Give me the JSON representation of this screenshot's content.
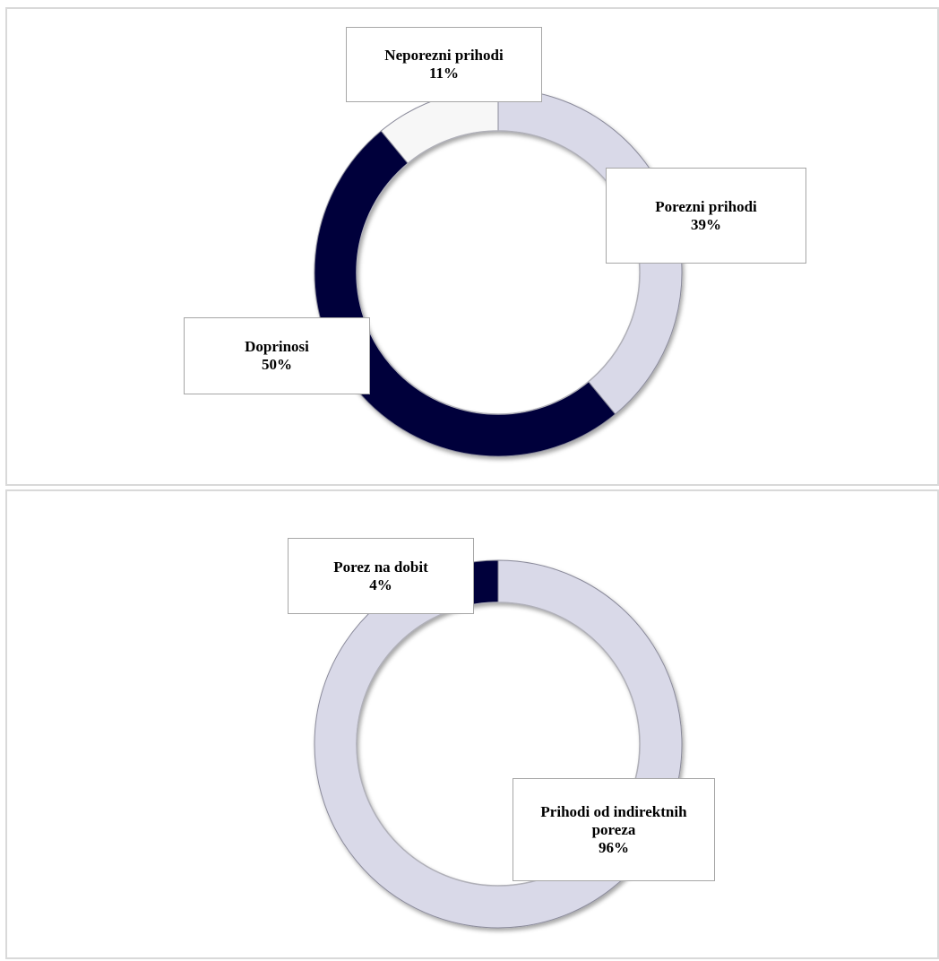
{
  "chart_data": [
    {
      "type": "pie",
      "style": "doughnut",
      "title": "",
      "slices": [
        {
          "name": "Porezni prihodi",
          "value": 39,
          "label": "39%",
          "color": "#d9d9e8"
        },
        {
          "name": "Doprinosi",
          "value": 50,
          "label": "50%",
          "color": "#03053a"
        },
        {
          "name": "Neporezni prihodi",
          "value": 11,
          "label": "11%",
          "color": "#f7f7f7"
        }
      ]
    },
    {
      "type": "pie",
      "style": "doughnut",
      "title": "",
      "slices": [
        {
          "name": "Prihodi od indirektnih poreza",
          "value": 96,
          "label": "96%",
          "color": "#d9d9e8"
        },
        {
          "name": "Porez na dobit",
          "value": 4,
          "label": "4%",
          "color": "#03053a"
        }
      ]
    }
  ]
}
